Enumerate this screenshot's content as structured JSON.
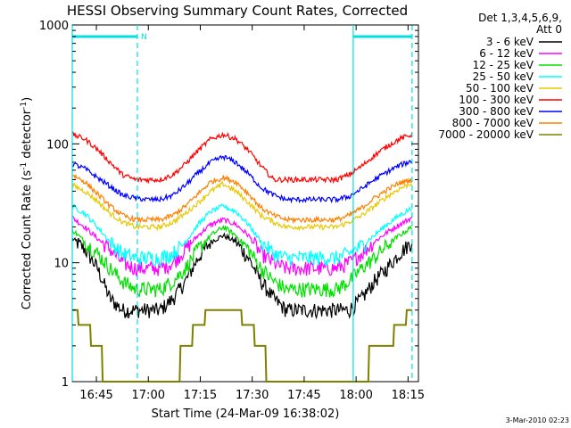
{
  "chart_data": {
    "type": "line",
    "title": "HESSI Observing Summary Count Rates, Corrected",
    "xlabel": "Start Time (24-Mar-09 16:38:02)",
    "ylabel_main": "Corrected Count Rate (s",
    "ylabel_sup1": "-1",
    "ylabel_mid": " detector",
    "ylabel_sup2": "-1",
    "ylabel_end": ")",
    "yscale": "log",
    "ylim": [
      1,
      1000
    ],
    "xlim": [
      "16:38:02",
      "18:18:00"
    ],
    "x_ticks": [
      "16:45",
      "17:00",
      "17:15",
      "17:30",
      "17:45",
      "18:00",
      "18:15"
    ],
    "y_ticks": [
      "1",
      "10",
      "100",
      "1000"
    ],
    "legend_header": [
      "Det 1,3,4,5,6,9,",
      "Att 0"
    ],
    "legend_placement": "right",
    "footer_date": "3-Mar-2010 02:23",
    "annotations": {
      "night_bars": [
        {
          "start": "16:38:02",
          "end": "16:56:50",
          "label": "N"
        },
        {
          "start": "17:59:10",
          "end": "18:16:10",
          "label": ""
        }
      ],
      "vertical_markers": [
        "16:38:02",
        "16:56:50",
        "17:59:10",
        "18:16:10"
      ],
      "marker_color": "#00e0e0"
    },
    "series": [
      {
        "name": "3 - 6 keV",
        "color": "#000000",
        "values": [
          16,
          13,
          9,
          5,
          4,
          4,
          4,
          4,
          5,
          7,
          11,
          15,
          17,
          15,
          11,
          7,
          5,
          4,
          4,
          4,
          4,
          4,
          4,
          5,
          7,
          9,
          12,
          15
        ]
      },
      {
        "name": "6 - 12 keV",
        "color": "#ff00ff",
        "values": [
          24,
          20,
          16,
          13,
          10,
          9,
          9,
          9,
          10,
          13,
          17,
          21,
          23,
          21,
          17,
          12,
          10,
          9,
          9,
          9,
          9,
          9,
          10,
          12,
          15,
          18,
          21,
          24
        ]
      },
      {
        "name": "12 - 25 keV",
        "color": "#00e000",
        "values": [
          19,
          15,
          12,
          9,
          7,
          6,
          6,
          6,
          7,
          9,
          13,
          17,
          20,
          17,
          13,
          9,
          7,
          6,
          6,
          6,
          6,
          6,
          7,
          9,
          11,
          14,
          17,
          20
        ]
      },
      {
        "name": "25 - 50 keV",
        "color": "#00ffff",
        "values": [
          30,
          26,
          20,
          15,
          12,
          11,
          11,
          11,
          12,
          15,
          21,
          27,
          30,
          27,
          21,
          15,
          12,
          11,
          11,
          11,
          11,
          11,
          12,
          14,
          17,
          21,
          25,
          29
        ]
      },
      {
        "name": "50 - 100 keV",
        "color": "#e8c800",
        "values": [
          45,
          40,
          33,
          26,
          22,
          20,
          20,
          20,
          22,
          26,
          32,
          40,
          46,
          40,
          32,
          25,
          22,
          20,
          20,
          20,
          20,
          20,
          22,
          25,
          30,
          36,
          42,
          47
        ]
      },
      {
        "name": "100 - 300 keV",
        "color": "#ff0000",
        "values": [
          120,
          110,
          90,
          70,
          55,
          50,
          50,
          50,
          55,
          68,
          88,
          110,
          120,
          110,
          88,
          65,
          50,
          50,
          50,
          50,
          50,
          50,
          55,
          65,
          80,
          95,
          110,
          120
        ]
      },
      {
        "name": "300 - 800 keV",
        "color": "#0000ff",
        "values": [
          68,
          62,
          52,
          44,
          37,
          35,
          34,
          34,
          37,
          45,
          57,
          70,
          78,
          70,
          56,
          43,
          37,
          34,
          34,
          34,
          34,
          34,
          36,
          42,
          50,
          58,
          66,
          72
        ]
      },
      {
        "name": "800 - 7000 keV",
        "color": "#ff8000",
        "values": [
          55,
          48,
          38,
          30,
          25,
          23,
          23,
          23,
          25,
          30,
          38,
          48,
          52,
          48,
          38,
          29,
          25,
          23,
          23,
          23,
          23,
          23,
          25,
          29,
          35,
          41,
          47,
          50
        ]
      },
      {
        "name": "7000 - 20000 keV",
        "color": "#808000",
        "values": [
          4,
          3,
          2,
          1,
          1,
          1,
          1,
          1,
          1,
          2,
          3,
          4,
          4,
          4,
          3,
          2,
          1,
          1,
          1,
          1,
          1,
          1,
          1,
          1,
          2,
          2,
          3,
          4
        ]
      }
    ]
  }
}
